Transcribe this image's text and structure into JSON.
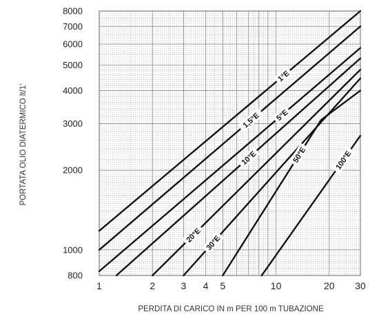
{
  "chart_data": {
    "type": "line",
    "title": "",
    "xlabel": "PERDITA DI CARICO IN m PER 100 m TUBAZIONE",
    "ylabel": "PORTATA OLIO DIATERMICO lt/1'",
    "x_scale": "log",
    "y_scale": "log",
    "xlim": [
      1,
      30
    ],
    "ylim": [
      800,
      8000
    ],
    "x_ticks": [
      1,
      2,
      3,
      4,
      5,
      10,
      20,
      30
    ],
    "x_tick_labels": [
      "1",
      "2",
      "3",
      "4",
      "5",
      "10",
      "20",
      "30"
    ],
    "y_ticks": [
      800,
      1000,
      2000,
      3000,
      4000,
      5000,
      6000,
      7000,
      8000
    ],
    "y_tick_labels": [
      "800",
      "1000",
      "2000",
      "3000",
      "4000",
      "5000",
      "6000",
      "7000",
      "8000"
    ],
    "grid": true,
    "series": [
      {
        "name": "1°E",
        "x": [
          1,
          30
        ],
        "y": [
          1180,
          8000
        ]
      },
      {
        "name": "1,5°E",
        "x": [
          1,
          30
        ],
        "y": [
          1000,
          7000
        ]
      },
      {
        "name": "5°E",
        "x": [
          1,
          30
        ],
        "y": [
          830,
          5800
        ]
      },
      {
        "name": "10°E",
        "x": [
          1.25,
          30
        ],
        "y": [
          800,
          5300
        ]
      },
      {
        "name": "20°E",
        "x": [
          2,
          30
        ],
        "y": [
          800,
          4800
        ]
      },
      {
        "name": "30°E",
        "x": [
          3,
          30
        ],
        "y": [
          800,
          4450
        ]
      },
      {
        "name": "50°E",
        "x": [
          5,
          18,
          30
        ],
        "y": [
          800,
          3100,
          4000
        ]
      },
      {
        "name": "100°E",
        "x": [
          8.3,
          30
        ],
        "y": [
          800,
          2700
        ]
      }
    ]
  }
}
